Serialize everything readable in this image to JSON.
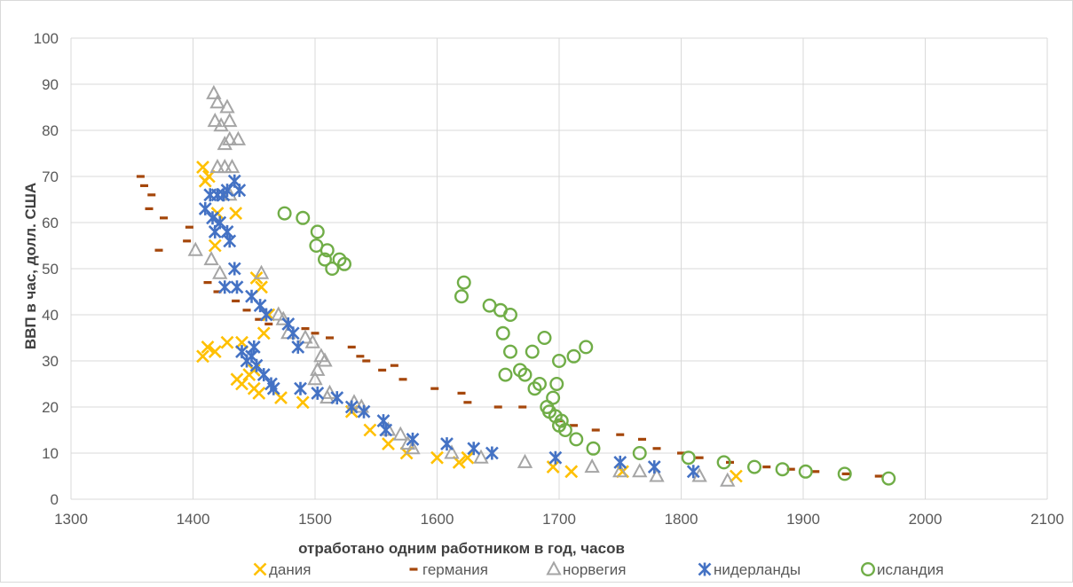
{
  "chart_data": {
    "type": "scatter",
    "title": "",
    "xlabel": "отработано одним работником в год, часов",
    "ylabel": "ВВП в час, долл. США",
    "xlim": [
      1300,
      2100
    ],
    "ylim": [
      0,
      100
    ],
    "xticks": [
      "1300",
      "1400",
      "1500",
      "1600",
      "1700",
      "1800",
      "1900",
      "2000",
      "2100"
    ],
    "yticks": [
      "0",
      "10",
      "20",
      "30",
      "40",
      "50",
      "60",
      "70",
      "80",
      "90",
      "100"
    ],
    "grid": "on",
    "legend_position": "bottom",
    "series": [
      {
        "name": "дания",
        "marker": "x",
        "color": "#FFC000",
        "points": [
          [
            1408,
            72
          ],
          [
            1410,
            69
          ],
          [
            1413,
            70
          ],
          [
            1420,
            62
          ],
          [
            1418,
            55
          ],
          [
            1435,
            62
          ],
          [
            1408,
            31
          ],
          [
            1412,
            33
          ],
          [
            1418,
            32
          ],
          [
            1428,
            34
          ],
          [
            1440,
            34
          ],
          [
            1436,
            26
          ],
          [
            1440,
            25
          ],
          [
            1446,
            27
          ],
          [
            1450,
            28
          ],
          [
            1454,
            23
          ],
          [
            1450,
            24
          ],
          [
            1452,
            48
          ],
          [
            1456,
            46
          ],
          [
            1458,
            36
          ],
          [
            1462,
            40
          ],
          [
            1472,
            22
          ],
          [
            1490,
            21
          ],
          [
            1530,
            19
          ],
          [
            1545,
            15
          ],
          [
            1560,
            12
          ],
          [
            1575,
            10
          ],
          [
            1600,
            9
          ],
          [
            1618,
            8
          ],
          [
            1625,
            9
          ],
          [
            1695,
            7
          ],
          [
            1710,
            6
          ],
          [
            1752,
            6
          ],
          [
            1845,
            5
          ]
        ]
      },
      {
        "name": "германия",
        "marker": "dash",
        "color": "#A5470B",
        "points": [
          [
            1357,
            70
          ],
          [
            1360,
            68
          ],
          [
            1366,
            66
          ],
          [
            1364,
            63
          ],
          [
            1376,
            61
          ],
          [
            1372,
            54
          ],
          [
            1395,
            56
          ],
          [
            1397,
            59
          ],
          [
            1412,
            47
          ],
          [
            1420,
            45
          ],
          [
            1435,
            43
          ],
          [
            1444,
            41
          ],
          [
            1454,
            39
          ],
          [
            1462,
            38
          ],
          [
            1492,
            37
          ],
          [
            1500,
            36
          ],
          [
            1512,
            35
          ],
          [
            1530,
            33
          ],
          [
            1537,
            31
          ],
          [
            1542,
            30
          ],
          [
            1565,
            29
          ],
          [
            1555,
            28
          ],
          [
            1572,
            26
          ],
          [
            1598,
            24
          ],
          [
            1620,
            23
          ],
          [
            1625,
            21
          ],
          [
            1650,
            20
          ],
          [
            1670,
            20
          ],
          [
            1700,
            17
          ],
          [
            1712,
            16
          ],
          [
            1730,
            15
          ],
          [
            1750,
            14
          ],
          [
            1768,
            13
          ],
          [
            1780,
            11
          ],
          [
            1800,
            10
          ],
          [
            1815,
            9
          ],
          [
            1840,
            8
          ],
          [
            1870,
            7
          ],
          [
            1890,
            6.5
          ],
          [
            1910,
            6
          ],
          [
            1935,
            5.5
          ],
          [
            1962,
            5
          ]
        ]
      },
      {
        "name": "норвегия",
        "marker": "triangle",
        "color": "#A5A5A5",
        "points": [
          [
            1417,
            88
          ],
          [
            1420,
            86
          ],
          [
            1428,
            85
          ],
          [
            1418,
            82
          ],
          [
            1423,
            81
          ],
          [
            1430,
            82
          ],
          [
            1426,
            77
          ],
          [
            1430,
            78
          ],
          [
            1437,
            78
          ],
          [
            1420,
            72
          ],
          [
            1426,
            72
          ],
          [
            1432,
            72
          ],
          [
            1430,
            66
          ],
          [
            1402,
            54
          ],
          [
            1415,
            52
          ],
          [
            1422,
            49
          ],
          [
            1456,
            49
          ],
          [
            1470,
            40
          ],
          [
            1474,
            39
          ],
          [
            1478,
            36
          ],
          [
            1492,
            35
          ],
          [
            1498,
            34
          ],
          [
            1500,
            26
          ],
          [
            1502,
            28
          ],
          [
            1505,
            31
          ],
          [
            1508,
            30
          ],
          [
            1510,
            22
          ],
          [
            1512,
            23
          ],
          [
            1532,
            21
          ],
          [
            1538,
            20
          ],
          [
            1560,
            15
          ],
          [
            1570,
            14
          ],
          [
            1576,
            12
          ],
          [
            1580,
            11
          ],
          [
            1612,
            10
          ],
          [
            1636,
            9
          ],
          [
            1672,
            8
          ],
          [
            1727,
            7
          ],
          [
            1750,
            6
          ],
          [
            1766,
            6
          ],
          [
            1780,
            5
          ],
          [
            1815,
            5
          ],
          [
            1838,
            4
          ]
        ]
      },
      {
        "name": "нидерланды",
        "marker": "star",
        "color": "#4472C4",
        "points": [
          [
            1410,
            63
          ],
          [
            1414,
            66
          ],
          [
            1420,
            66
          ],
          [
            1425,
            66
          ],
          [
            1428,
            67
          ],
          [
            1434,
            69
          ],
          [
            1438,
            67
          ],
          [
            1416,
            61
          ],
          [
            1418,
            58
          ],
          [
            1422,
            60
          ],
          [
            1428,
            58
          ],
          [
            1430,
            56
          ],
          [
            1434,
            50
          ],
          [
            1426,
            46
          ],
          [
            1436,
            46
          ],
          [
            1448,
            44
          ],
          [
            1455,
            42
          ],
          [
            1460,
            40
          ],
          [
            1440,
            32
          ],
          [
            1444,
            30
          ],
          [
            1448,
            31
          ],
          [
            1450,
            33
          ],
          [
            1452,
            29
          ],
          [
            1458,
            27
          ],
          [
            1464,
            25
          ],
          [
            1466,
            24
          ],
          [
            1478,
            38
          ],
          [
            1482,
            36
          ],
          [
            1486,
            33
          ],
          [
            1488,
            24
          ],
          [
            1502,
            23
          ],
          [
            1518,
            22
          ],
          [
            1530,
            20
          ],
          [
            1540,
            19
          ],
          [
            1556,
            17
          ],
          [
            1558,
            15
          ],
          [
            1580,
            13
          ],
          [
            1608,
            12
          ],
          [
            1630,
            11
          ],
          [
            1645,
            10
          ],
          [
            1697,
            9
          ],
          [
            1750,
            8
          ],
          [
            1778,
            7
          ],
          [
            1810,
            6
          ]
        ]
      },
      {
        "name": "исландия",
        "marker": "circle",
        "color": "#70AD47",
        "points": [
          [
            1475,
            62
          ],
          [
            1490,
            61
          ],
          [
            1502,
            58
          ],
          [
            1501,
            55
          ],
          [
            1510,
            54
          ],
          [
            1508,
            52
          ],
          [
            1514,
            50
          ],
          [
            1520,
            52
          ],
          [
            1524,
            51
          ],
          [
            1622,
            47
          ],
          [
            1620,
            44
          ],
          [
            1643,
            42
          ],
          [
            1652,
            41
          ],
          [
            1660,
            40
          ],
          [
            1654,
            36
          ],
          [
            1688,
            35
          ],
          [
            1660,
            32
          ],
          [
            1678,
            32
          ],
          [
            1722,
            33
          ],
          [
            1712,
            31
          ],
          [
            1700,
            30
          ],
          [
            1656,
            27
          ],
          [
            1672,
            27
          ],
          [
            1668,
            28
          ],
          [
            1684,
            25
          ],
          [
            1680,
            24
          ],
          [
            1698,
            25
          ],
          [
            1690,
            20
          ],
          [
            1695,
            22
          ],
          [
            1692,
            19
          ],
          [
            1697,
            18
          ],
          [
            1700,
            16
          ],
          [
            1702,
            17
          ],
          [
            1705,
            15
          ],
          [
            1714,
            13
          ],
          [
            1728,
            11
          ],
          [
            1766,
            10
          ],
          [
            1806,
            9
          ],
          [
            1835,
            8
          ],
          [
            1860,
            7
          ],
          [
            1883,
            6.5
          ],
          [
            1902,
            6
          ],
          [
            1934,
            5.5
          ],
          [
            1970,
            4.5
          ]
        ]
      }
    ]
  }
}
